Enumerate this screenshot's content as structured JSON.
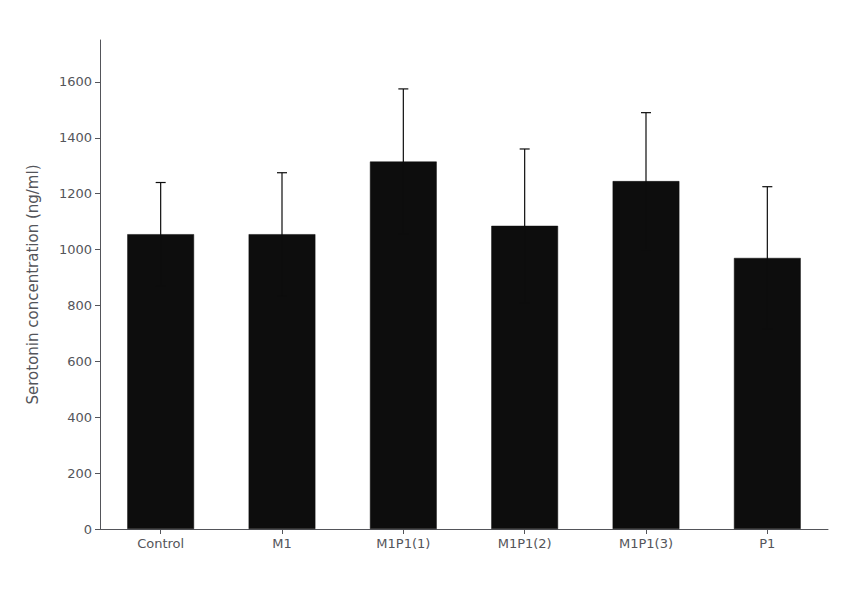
{
  "chart_data": {
    "type": "bar",
    "ylabel": "Serotonin concentration (ng/ml)",
    "categories": [
      "Control",
      "M1",
      "M1P1(1)",
      "M1P1(2)",
      "M1P1(3)",
      "P1"
    ],
    "values": [
      1055,
      1055,
      1315,
      1085,
      1245,
      970
    ],
    "errors": [
      185,
      220,
      260,
      275,
      245,
      255
    ],
    "color": "#0d0d0d",
    "ylim": [
      0,
      1750
    ],
    "yticks": [
      0,
      200,
      400,
      600,
      800,
      1000,
      1200,
      1400,
      1600
    ],
    "grid": false
  }
}
